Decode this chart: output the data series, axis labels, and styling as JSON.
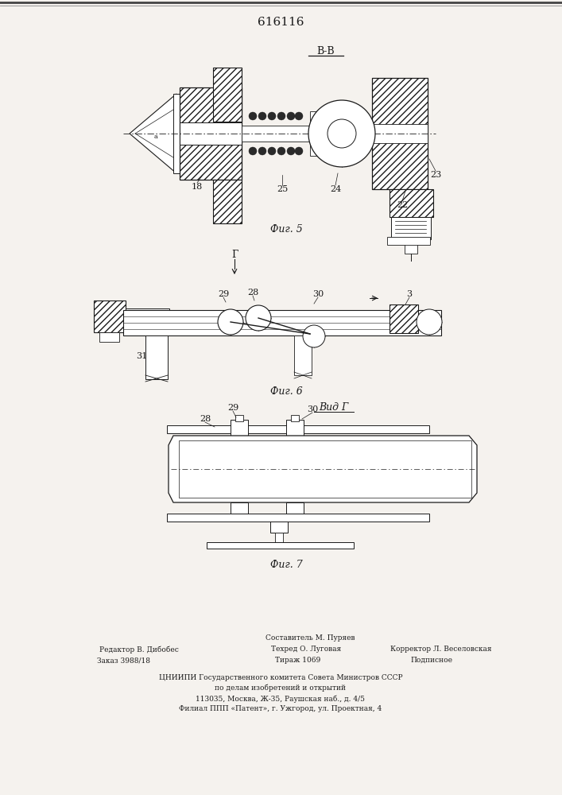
{
  "title": "616116",
  "bg_color": "#f5f2ee",
  "line_color": "#1a1a1a",
  "section_label_B": "В-В",
  "section_label_G": "Вид Г",
  "fig5_label": "Фиг. 5",
  "fig6_label": "Фиг. 6",
  "fig7_label": "Фиг. 7",
  "footer_line0": "Составитель М. Пуряев",
  "footer_line1": "Редактор В. Дибобес",
  "footer_line2": "Техред О. Луговая",
  "footer_line3": "Корректор Л. Веселовская",
  "footer_line4": "Заказ 3988/18",
  "footer_line5": "Тираж 1069",
  "footer_line6": "Подписное",
  "footer_line7": "ЦНИИПИ Государственного комитета Совета Министров СССР",
  "footer_line8": "по делам изобретений и открытий",
  "footer_line9": "113035, Москва, Ж-35, Раушская наб., д. 4/5",
  "footer_line10": "Филиал ППП «Патент», г. Ужгород, ул. Проектная, 4"
}
